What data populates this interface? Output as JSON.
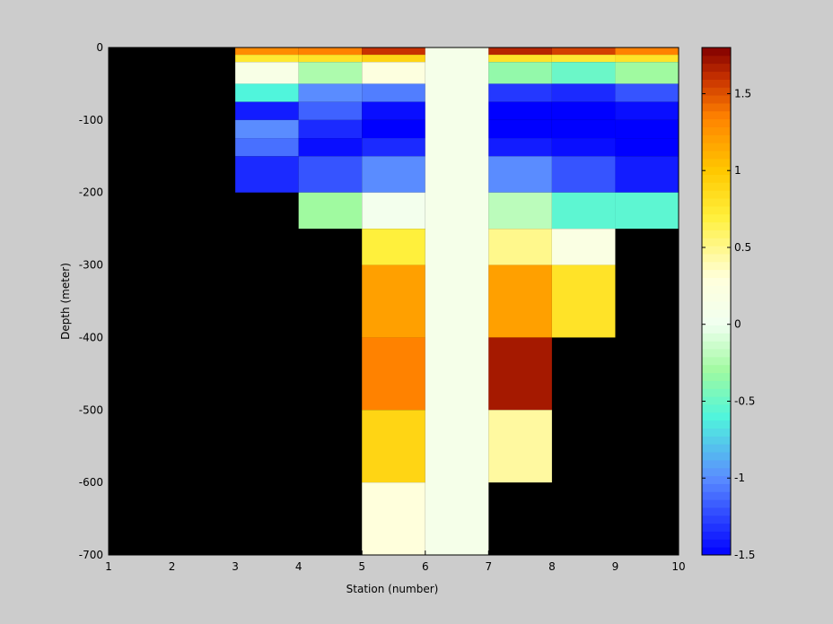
{
  "chart_data": {
    "type": "heatmap",
    "xlabel": "Station (number)",
    "ylabel": "Depth (meter)",
    "xlim": [
      1,
      10
    ],
    "ylim": [
      -700,
      0
    ],
    "xticks": [
      "1",
      "2",
      "3",
      "4",
      "5",
      "6",
      "7",
      "8",
      "9",
      "10"
    ],
    "yticks": [
      "0",
      "-100",
      "-200",
      "-300",
      "-400",
      "-500",
      "-600",
      "-700"
    ],
    "colorbar": {
      "ticks": [
        "1.5",
        "1",
        "0.5",
        "0",
        "-0.5",
        "-1",
        "-1.5"
      ],
      "tick_values": [
        1.5,
        1,
        0.5,
        0,
        -0.5,
        -1,
        -1.5
      ],
      "range": [
        -1.5,
        1.8
      ],
      "colormap": "blue-cyan-green-white-yellow-orange-darkred"
    },
    "background_color": "#000000",
    "cell_note": "cells give temperature-anomaly value at station column [x0,x1] and depth range [top,bottom]",
    "cells": [
      {
        "x0": 3,
        "x1": 4,
        "top": 0,
        "bottom": -10,
        "value": 1.3
      },
      {
        "x0": 3,
        "x1": 4,
        "top": -10,
        "bottom": -20,
        "value": 0.75
      },
      {
        "x0": 3,
        "x1": 4,
        "top": -20,
        "bottom": -50,
        "value": 0.15
      },
      {
        "x0": 3,
        "x1": 4,
        "top": -50,
        "bottom": -75,
        "value": -0.6
      },
      {
        "x0": 3,
        "x1": 4,
        "top": -75,
        "bottom": -100,
        "value": -1.4
      },
      {
        "x0": 3,
        "x1": 4,
        "top": -100,
        "bottom": -125,
        "value": -1.0
      },
      {
        "x0": 3,
        "x1": 4,
        "top": -125,
        "bottom": -150,
        "value": -1.1
      },
      {
        "x0": 3,
        "x1": 4,
        "top": -150,
        "bottom": -200,
        "value": -1.35
      },
      {
        "x0": 4,
        "x1": 5,
        "top": 0,
        "bottom": -10,
        "value": 1.35
      },
      {
        "x0": 4,
        "x1": 5,
        "top": -10,
        "bottom": -20,
        "value": 0.8
      },
      {
        "x0": 4,
        "x1": 5,
        "top": -20,
        "bottom": -50,
        "value": -0.25
      },
      {
        "x0": 4,
        "x1": 5,
        "top": -50,
        "bottom": -75,
        "value": -1.0
      },
      {
        "x0": 4,
        "x1": 5,
        "top": -75,
        "bottom": -100,
        "value": -1.15
      },
      {
        "x0": 4,
        "x1": 5,
        "top": -100,
        "bottom": -125,
        "value": -1.35
      },
      {
        "x0": 4,
        "x1": 5,
        "top": -125,
        "bottom": -150,
        "value": -1.45
      },
      {
        "x0": 4,
        "x1": 5,
        "top": -150,
        "bottom": -200,
        "value": -1.2
      },
      {
        "x0": 4,
        "x1": 5,
        "top": -200,
        "bottom": -250,
        "value": -0.3
      },
      {
        "x0": 5,
        "x1": 6,
        "top": 0,
        "bottom": -10,
        "value": 1.6
      },
      {
        "x0": 5,
        "x1": 6,
        "top": -10,
        "bottom": -20,
        "value": 0.9
      },
      {
        "x0": 5,
        "x1": 6,
        "top": -20,
        "bottom": -50,
        "value": 0.25
      },
      {
        "x0": 5,
        "x1": 6,
        "top": -50,
        "bottom": -75,
        "value": -1.05
      },
      {
        "x0": 5,
        "x1": 6,
        "top": -75,
        "bottom": -100,
        "value": -1.45
      },
      {
        "x0": 5,
        "x1": 6,
        "top": -100,
        "bottom": -125,
        "value": -1.5
      },
      {
        "x0": 5,
        "x1": 6,
        "top": -125,
        "bottom": -150,
        "value": -1.35
      },
      {
        "x0": 5,
        "x1": 6,
        "top": -150,
        "bottom": -200,
        "value": -1.0
      },
      {
        "x0": 5,
        "x1": 6,
        "top": -200,
        "bottom": -250,
        "value": 0.05
      },
      {
        "x0": 5,
        "x1": 6,
        "top": -250,
        "bottom": -300,
        "value": 0.7
      },
      {
        "x0": 5,
        "x1": 6,
        "top": -300,
        "bottom": -400,
        "value": 1.2
      },
      {
        "x0": 5,
        "x1": 6,
        "top": -400,
        "bottom": -500,
        "value": 1.35
      },
      {
        "x0": 5,
        "x1": 6,
        "top": -500,
        "bottom": -600,
        "value": 0.9
      },
      {
        "x0": 5,
        "x1": 6,
        "top": -600,
        "bottom": -700,
        "value": 0.3
      },
      {
        "x0": 6,
        "x1": 7,
        "top": 0,
        "bottom": -700,
        "value": 0.1
      },
      {
        "x0": 7,
        "x1": 8,
        "top": 0,
        "bottom": -10,
        "value": 1.65
      },
      {
        "x0": 7,
        "x1": 8,
        "top": -10,
        "bottom": -20,
        "value": 0.8
      },
      {
        "x0": 7,
        "x1": 8,
        "top": -20,
        "bottom": -50,
        "value": -0.35
      },
      {
        "x0": 7,
        "x1": 8,
        "top": -50,
        "bottom": -75,
        "value": -1.3
      },
      {
        "x0": 7,
        "x1": 8,
        "top": -75,
        "bottom": -100,
        "value": -1.5
      },
      {
        "x0": 7,
        "x1": 8,
        "top": -100,
        "bottom": -125,
        "value": -1.55
      },
      {
        "x0": 7,
        "x1": 8,
        "top": -125,
        "bottom": -150,
        "value": -1.4
      },
      {
        "x0": 7,
        "x1": 8,
        "top": -150,
        "bottom": -200,
        "value": -1.0
      },
      {
        "x0": 7,
        "x1": 8,
        "top": -200,
        "bottom": -250,
        "value": -0.2
      },
      {
        "x0": 7,
        "x1": 8,
        "top": -250,
        "bottom": -300,
        "value": 0.5
      },
      {
        "x0": 7,
        "x1": 8,
        "top": -300,
        "bottom": -400,
        "value": 1.2
      },
      {
        "x0": 7,
        "x1": 8,
        "top": -400,
        "bottom": -500,
        "value": 1.7
      },
      {
        "x0": 7,
        "x1": 8,
        "top": -500,
        "bottom": -600,
        "value": 0.45
      },
      {
        "x0": 8,
        "x1": 9,
        "top": 0,
        "bottom": -10,
        "value": 1.55
      },
      {
        "x0": 8,
        "x1": 9,
        "top": -10,
        "bottom": -20,
        "value": 0.75
      },
      {
        "x0": 8,
        "x1": 9,
        "top": -20,
        "bottom": -50,
        "value": -0.5
      },
      {
        "x0": 8,
        "x1": 9,
        "top": -50,
        "bottom": -75,
        "value": -1.35
      },
      {
        "x0": 8,
        "x1": 9,
        "top": -75,
        "bottom": -100,
        "value": -1.55
      },
      {
        "x0": 8,
        "x1": 9,
        "top": -100,
        "bottom": -125,
        "value": -1.6
      },
      {
        "x0": 8,
        "x1": 9,
        "top": -125,
        "bottom": -150,
        "value": -1.45
      },
      {
        "x0": 8,
        "x1": 9,
        "top": -150,
        "bottom": -200,
        "value": -1.2
      },
      {
        "x0": 8,
        "x1": 9,
        "top": -200,
        "bottom": -250,
        "value": -0.55
      },
      {
        "x0": 8,
        "x1": 9,
        "top": -250,
        "bottom": -300,
        "value": 0.2
      },
      {
        "x0": 8,
        "x1": 9,
        "top": -300,
        "bottom": -400,
        "value": 0.8
      },
      {
        "x0": 9,
        "x1": 10,
        "top": 0,
        "bottom": -10,
        "value": 1.35
      },
      {
        "x0": 9,
        "x1": 10,
        "top": -10,
        "bottom": -20,
        "value": 0.8
      },
      {
        "x0": 9,
        "x1": 10,
        "top": -20,
        "bottom": -50,
        "value": -0.3
      },
      {
        "x0": 9,
        "x1": 10,
        "top": -50,
        "bottom": -75,
        "value": -1.2
      },
      {
        "x0": 9,
        "x1": 10,
        "top": -75,
        "bottom": -100,
        "value": -1.45
      },
      {
        "x0": 9,
        "x1": 10,
        "top": -100,
        "bottom": -125,
        "value": -1.6
      },
      {
        "x0": 9,
        "x1": 10,
        "top": -125,
        "bottom": -150,
        "value": -1.5
      },
      {
        "x0": 9,
        "x1": 10,
        "top": -150,
        "bottom": -200,
        "value": -1.4
      },
      {
        "x0": 9,
        "x1": 10,
        "top": -200,
        "bottom": -250,
        "value": -0.55
      }
    ]
  }
}
